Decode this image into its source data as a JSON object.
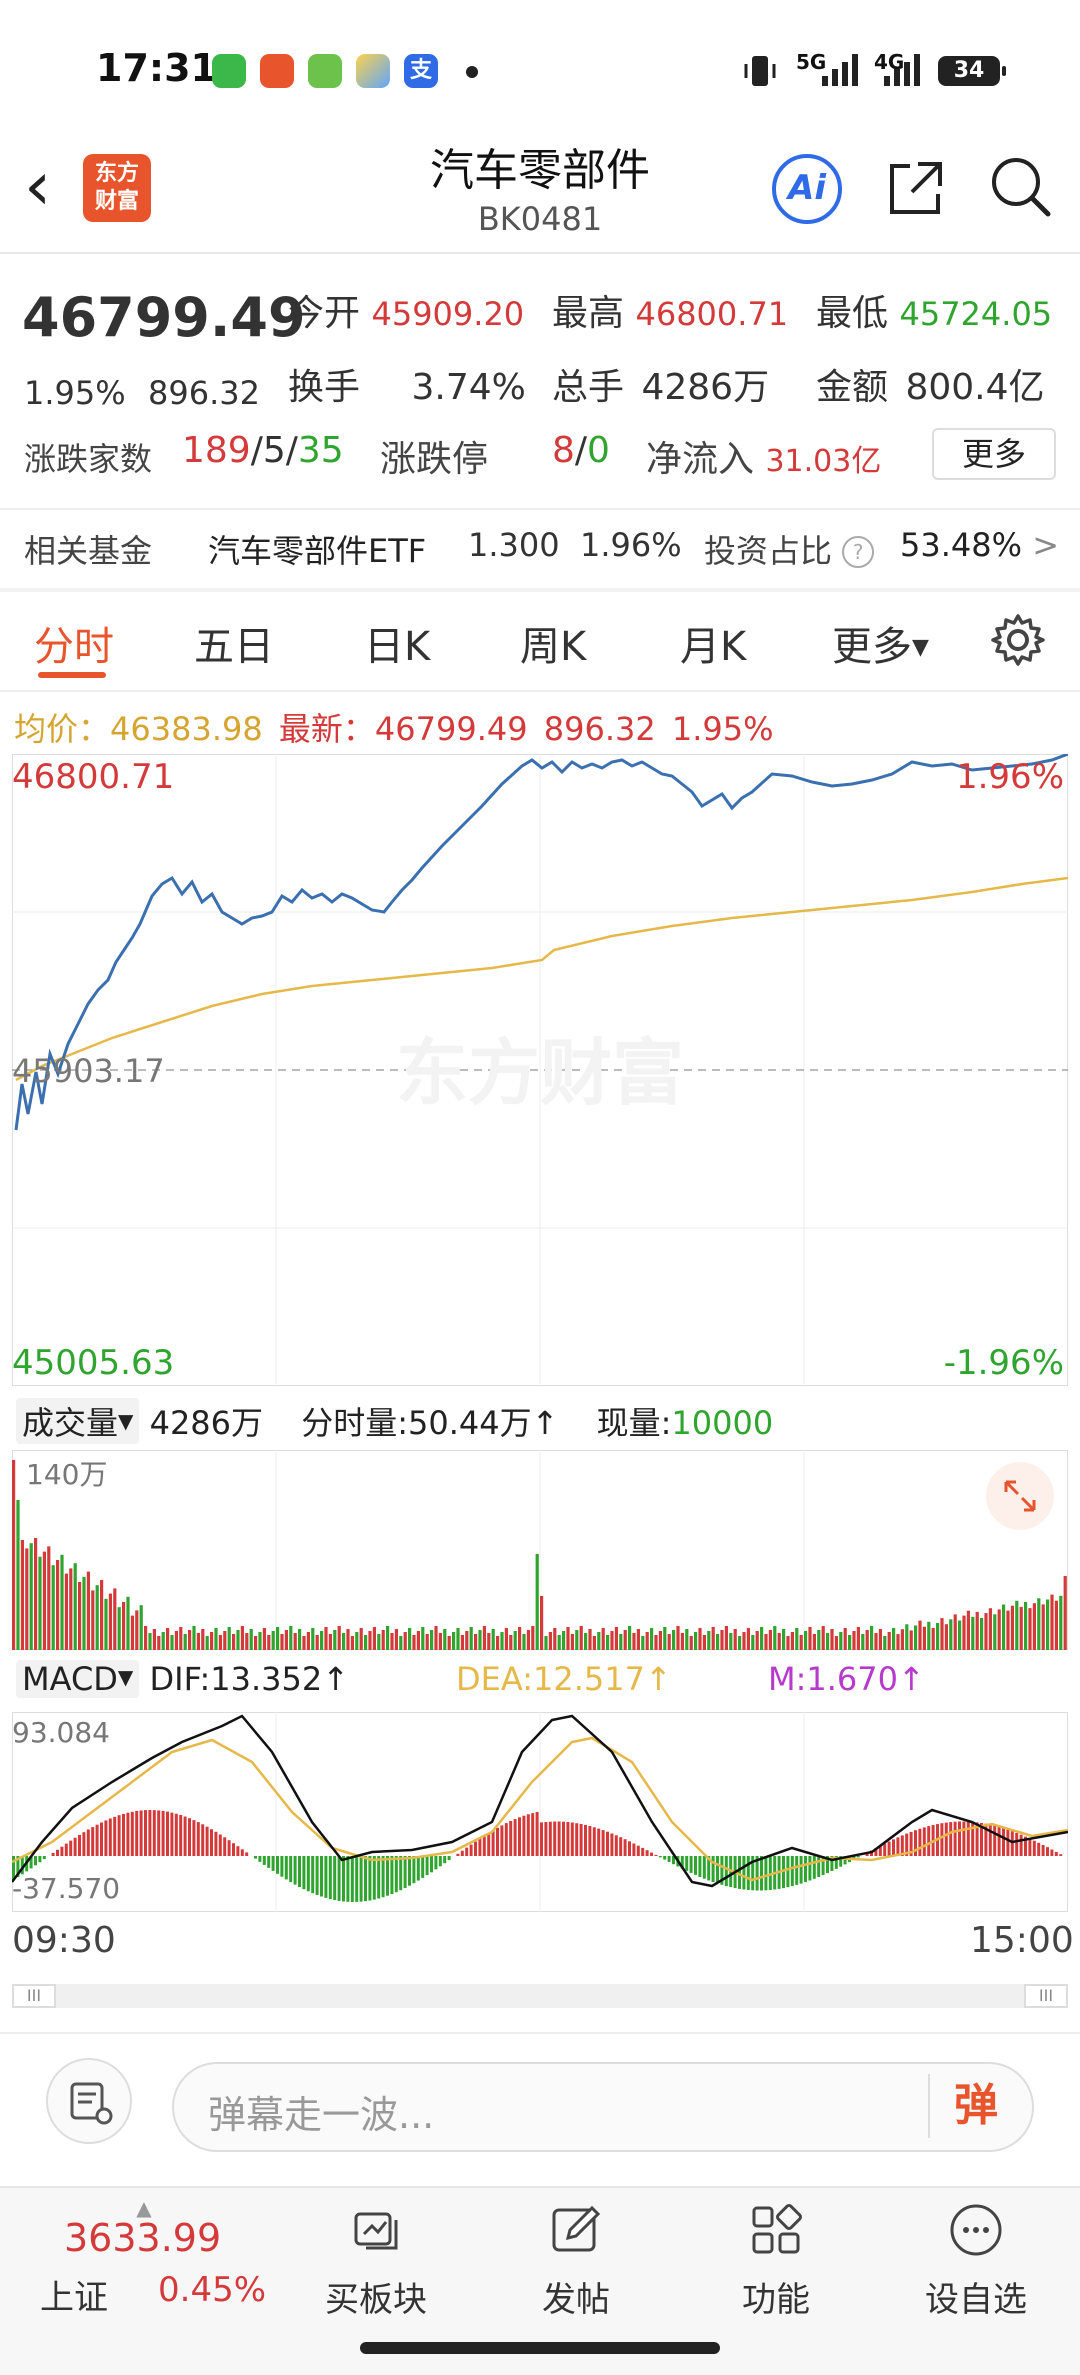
{
  "status_bar": {
    "time": "17:31",
    "net1": "5G",
    "net2": "4G",
    "battery": "34"
  },
  "header": {
    "back_glyph": "‹",
    "logo_line1": "东方",
    "logo_line2": "财富",
    "title": "汽车零部件",
    "code": "BK0481",
    "ai_label": "Ai"
  },
  "quote": {
    "price": "46799.49",
    "change_pct": "1.95%",
    "change_amt": "896.32",
    "open_label": "今开",
    "open": "45909.20",
    "high_label": "最高",
    "high": "46800.71",
    "low_label": "最低",
    "low": "45724.05",
    "turnover_label": "换手",
    "turnover": "3.74%",
    "volume_label": "总手",
    "volume": "4286万",
    "amount_label": "金额",
    "amount": "800.4亿",
    "breadth_label": "涨跌家数",
    "up": "189",
    "flat": "5",
    "down": "35",
    "limit_label": "涨跌停",
    "limit_up": "8",
    "limit_down": "0",
    "inflow_label": "净流入",
    "inflow": "31.03亿",
    "more_label": "更多"
  },
  "fund": {
    "label": "相关基金",
    "name": "汽车零部件ETF",
    "price": "1.300",
    "change": "1.96%",
    "ratio_label": "投资占比",
    "ratio": "53.48%",
    "arrow": ">"
  },
  "tabs": [
    "分时",
    "五日",
    "日K",
    "周K",
    "月K",
    "更多"
  ],
  "info": {
    "avg_label": "均价：",
    "avg": "46383.98",
    "latest_label": "最新：",
    "latest": "46799.49",
    "change_amt": "896.32",
    "change_pct": "1.95%"
  },
  "price_chart": {
    "top_value": "46800.71",
    "mid_value": "45903.17",
    "bottom_value": "45005.63",
    "top_pct": "1.96%",
    "bottom_pct": "-1.96%",
    "watermark": "东方财富"
  },
  "volume": {
    "selector": "成交量",
    "total": "4286万",
    "minute_label": "分时量:",
    "minute_value": "50.44万",
    "arrow": "↑",
    "current_label": "现量:",
    "current_value": "10000",
    "axis_max": "140万"
  },
  "macd": {
    "selector": "MACD",
    "dif": "DIF:13.352",
    "dea": "DEA:12.517",
    "m": "M:1.670",
    "arrow": "↑",
    "max": "93.084",
    "min": "-37.570"
  },
  "time_axis": {
    "start": "09:30",
    "end": "15:00",
    "handle": "III"
  },
  "comment": {
    "placeholder": "弹幕走一波...",
    "send": "弹"
  },
  "bottom_nav": {
    "index_value": "3633.99",
    "index_name": "上证",
    "index_change": "0.45%",
    "items": [
      "买板块",
      "发帖",
      "功能",
      "设自选"
    ]
  },
  "chart_data": [
    {
      "type": "line",
      "title": "",
      "x": [
        "09:30",
        "15:00"
      ],
      "ylim": [
        45005.63,
        46800.71
      ],
      "reference": 45903.17,
      "series": []
    },
    {
      "type": "bar",
      "title": "",
      "ylim": [
        0,
        1400000
      ],
      "ylabel": "",
      "series": []
    }
  ],
  "colors": {
    "up": "#d43a3a",
    "down": "#2fa52f",
    "price_line": "#3a6fb0",
    "avg_line": "#e6b84a",
    "accent": "#e8552c"
  }
}
